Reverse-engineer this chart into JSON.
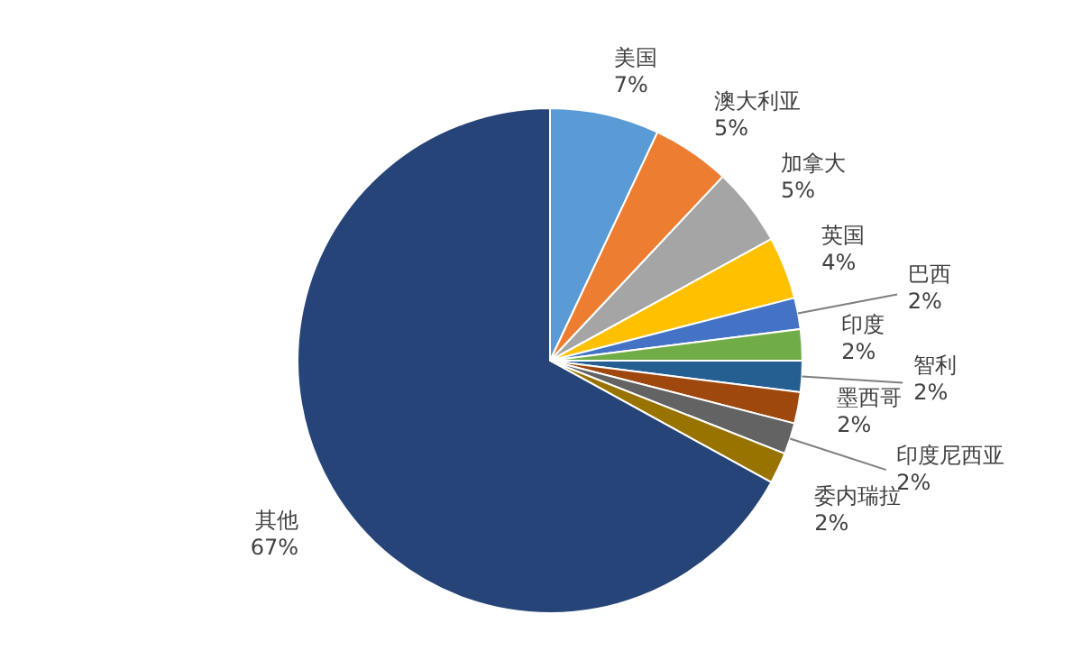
{
  "chart_data": {
    "type": "pie",
    "categories": [
      "美国",
      "澳大利亚",
      "加拿大",
      "英国",
      "巴西",
      "印度",
      "智利",
      "墨西哥",
      "印度尼西亚",
      "委内瑞拉",
      "其他"
    ],
    "values": [
      7,
      5,
      5,
      4,
      2,
      2,
      2,
      2,
      2,
      2,
      67
    ],
    "value_labels": [
      "7%",
      "5%",
      "5%",
      "4%",
      "2%",
      "2%",
      "2%",
      "2%",
      "2%",
      "2%",
      "67%"
    ],
    "colors": [
      "#5b9bd5",
      "#ed7d31",
      "#a5a5a5",
      "#ffc000",
      "#4472c4",
      "#70ad47",
      "#255e91",
      "#9e480e",
      "#636363",
      "#997300",
      "#264478"
    ],
    "legend": false
  }
}
